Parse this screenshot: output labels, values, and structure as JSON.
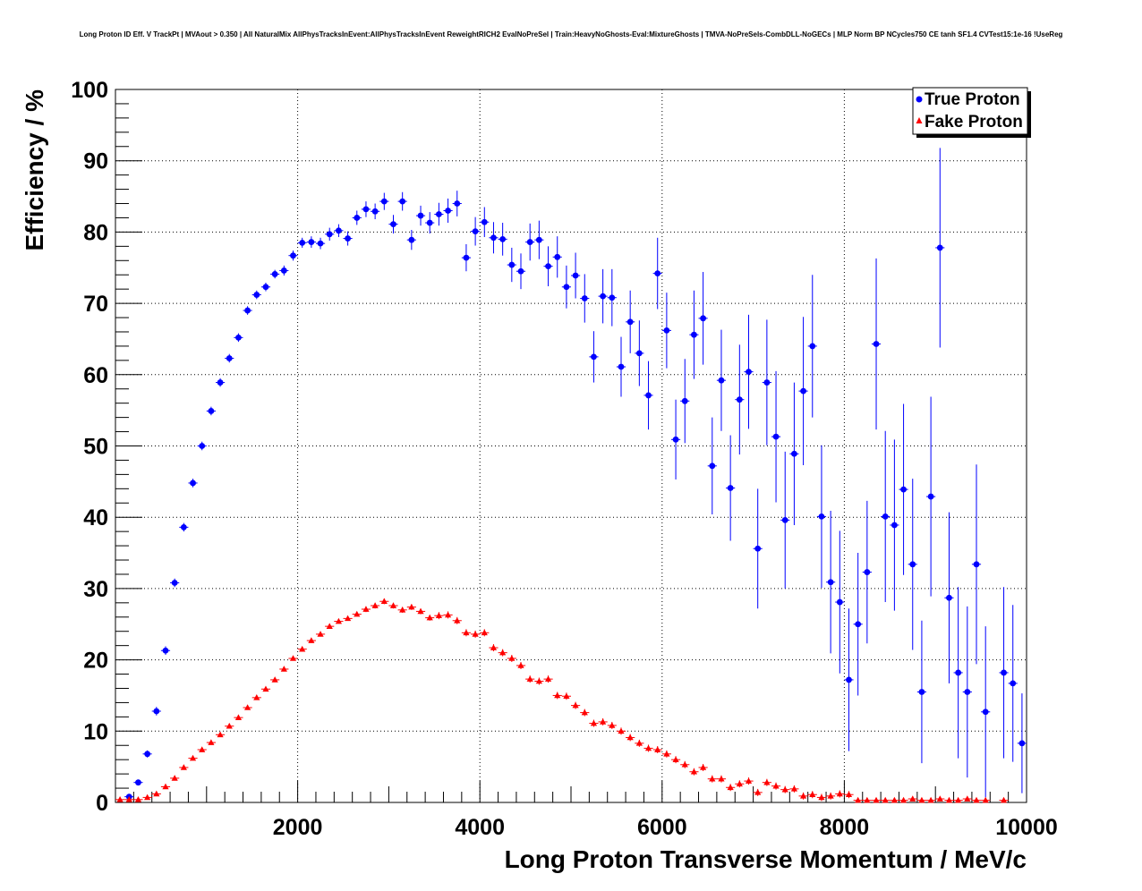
{
  "chart_data": {
    "type": "scatter",
    "title": "Long Proton ID Eff. V TrackPt | MVAout > 0.350 | All NaturalMix AllPhysTracksInEvent:AllPhysTracksInEvent ReweightRICH2 EvalNoPreSel | Train:HeavyNoGhosts-Eval:MixtureGhosts | TMVA-NoPreSels-CombDLL-NoGECs | MLP Norm BP NCycles750 CE tanh SF1.4 CVTest15:1e-16 !UseReg",
    "xlabel": "Long Proton Transverse Momentum / MeV/c",
    "ylabel": "Efficiency / %",
    "xlim": [
      0,
      10000
    ],
    "ylim": [
      0,
      100
    ],
    "grid": true,
    "legend_position": "top-right",
    "x_ticks": [
      "2000",
      "4000",
      "6000",
      "8000",
      "10000"
    ],
    "y_ticks": [
      "0",
      "10",
      "20",
      "30",
      "40",
      "50",
      "60",
      "70",
      "80",
      "90",
      "100"
    ],
    "x": [
      50,
      150,
      250,
      350,
      450,
      550,
      650,
      750,
      850,
      950,
      1050,
      1150,
      1250,
      1350,
      1450,
      1550,
      1650,
      1750,
      1850,
      1950,
      2050,
      2150,
      2250,
      2350,
      2450,
      2550,
      2650,
      2750,
      2850,
      2950,
      3050,
      3150,
      3250,
      3350,
      3450,
      3550,
      3650,
      3750,
      3850,
      3950,
      4050,
      4150,
      4250,
      4350,
      4450,
      4550,
      4650,
      4750,
      4850,
      4950,
      5050,
      5150,
      5250,
      5350,
      5450,
      5550,
      5650,
      5750,
      5850,
      5950,
      6050,
      6150,
      6250,
      6350,
      6450,
      6550,
      6650,
      6750,
      6850,
      6950,
      7050,
      7150,
      7250,
      7350,
      7450,
      7550,
      7650,
      7750,
      7850,
      7950,
      8050,
      8150,
      8250,
      8350,
      8450,
      8550,
      8650,
      8750,
      8850,
      8950,
      9050,
      9150,
      9250,
      9350,
      9450,
      9550,
      9650,
      9750,
      9850,
      9950
    ],
    "series": [
      {
        "name": "True Proton",
        "color": "#0000ff",
        "marker": "circle",
        "values": [
          null,
          0.8,
          2.8,
          6.8,
          12.8,
          21.3,
          30.8,
          38.6,
          44.8,
          50.0,
          54.9,
          58.9,
          62.3,
          65.2,
          69.0,
          71.2,
          72.3,
          74.1,
          74.6,
          76.7,
          78.5,
          78.6,
          78.4,
          79.7,
          80.2,
          79.1,
          82.0,
          83.2,
          82.9,
          84.3,
          81.1,
          84.3,
          78.9,
          82.3,
          81.3,
          82.5,
          83.0,
          84.0,
          76.4,
          80.1,
          81.4,
          79.2,
          79.0,
          75.4,
          74.5,
          78.6,
          78.9,
          75.2,
          76.5,
          72.3,
          73.9,
          70.7,
          62.5,
          71.0,
          70.8,
          61.1,
          67.4,
          63.0,
          57.1,
          74.2,
          66.2,
          50.9,
          56.3,
          65.6,
          67.9,
          47.2,
          59.2,
          44.1,
          56.5,
          60.4,
          35.6,
          58.9,
          51.3,
          39.6,
          48.9,
          57.7,
          64.0,
          40.1,
          30.9,
          28.1,
          17.2,
          25.0,
          32.3,
          64.3,
          40.1,
          38.9,
          43.9,
          33.4,
          15.5,
          42.9,
          77.8,
          28.7,
          18.2,
          15.5,
          33.4,
          12.7,
          null,
          18.2,
          16.7,
          8.3
        ],
        "errors": [
          0,
          0.3,
          0.4,
          0.5,
          0.6,
          0.6,
          0.6,
          0.6,
          0.6,
          0.6,
          0.6,
          0.6,
          0.6,
          0.6,
          0.6,
          0.6,
          0.6,
          0.6,
          0.7,
          0.7,
          0.7,
          0.8,
          0.8,
          0.9,
          0.9,
          1.0,
          1.0,
          1.1,
          1.1,
          1.2,
          1.3,
          1.3,
          1.4,
          1.4,
          1.5,
          1.6,
          1.7,
          1.8,
          1.9,
          2.0,
          2.1,
          2.2,
          2.3,
          2.4,
          2.5,
          2.6,
          2.7,
          2.8,
          2.9,
          3.0,
          3.2,
          3.4,
          3.6,
          3.8,
          4.0,
          4.2,
          4.4,
          4.6,
          4.8,
          5.0,
          5.3,
          5.6,
          5.9,
          6.2,
          6.5,
          6.8,
          7.1,
          7.4,
          7.7,
          8.0,
          8.4,
          8.8,
          9.2,
          9.6,
          10.0,
          10.4,
          10.0,
          10.0,
          10.0,
          10.0,
          10.0,
          10.0,
          10.0,
          12.0,
          12.0,
          12.0,
          12.0,
          12.0,
          10.0,
          14.0,
          14.0,
          12.0,
          12.0,
          12.0,
          14.0,
          12.0,
          0,
          12.0,
          11.0,
          7.0
        ]
      },
      {
        "name": "Fake Proton",
        "color": "#ff0000",
        "marker": "triangle",
        "values": [
          0.4,
          0.4,
          0.4,
          0.7,
          1.2,
          2.2,
          3.4,
          4.9,
          6.2,
          7.4,
          8.4,
          9.5,
          10.7,
          11.9,
          13.3,
          14.7,
          15.9,
          17.2,
          18.7,
          20.2,
          21.5,
          22.7,
          23.6,
          24.7,
          25.4,
          25.8,
          26.4,
          27.1,
          27.6,
          28.2,
          27.6,
          27.0,
          27.4,
          26.8,
          25.9,
          26.2,
          26.3,
          25.5,
          23.8,
          23.6,
          23.8,
          21.7,
          21.0,
          20.2,
          19.2,
          17.3,
          17.0,
          17.3,
          15.0,
          14.9,
          13.6,
          12.6,
          11.1,
          11.3,
          10.8,
          10.0,
          9.1,
          8.3,
          7.6,
          7.4,
          6.8,
          6.0,
          5.3,
          4.3,
          4.9,
          3.3,
          3.3,
          2.1,
          2.6,
          3.0,
          1.4,
          2.8,
          2.3,
          1.8,
          1.9,
          0.9,
          1.1,
          0.7,
          0.9,
          1.2,
          1.1,
          0.3,
          0.3,
          0.3,
          0.3,
          0.3,
          0.3,
          0.5,
          0.3,
          0.3,
          0.5,
          0.3,
          0.3,
          0.5,
          0.3,
          0.3,
          null,
          0.3,
          null,
          null
        ],
        "errors": [
          0.1,
          0.1,
          0.1,
          0.1,
          0.1,
          0.2,
          0.2,
          0.2,
          0.2,
          0.2,
          0.2,
          0.2,
          0.2,
          0.2,
          0.2,
          0.2,
          0.2,
          0.2,
          0.2,
          0.3,
          0.3,
          0.3,
          0.3,
          0.3,
          0.3,
          0.3,
          0.3,
          0.4,
          0.4,
          0.4,
          0.4,
          0.4,
          0.4,
          0.4,
          0.4,
          0.5,
          0.5,
          0.5,
          0.5,
          0.5,
          0.5,
          0.5,
          0.5,
          0.5,
          0.5,
          0.5,
          0.5,
          0.5,
          0.5,
          0.5,
          0.5,
          0.5,
          0.5,
          0.5,
          0.5,
          0.5,
          0.5,
          0.5,
          0.5,
          0.5,
          0.5,
          0.5,
          0.5,
          0.5,
          0.5,
          0.5,
          0.5,
          0.5,
          0.5,
          0.5,
          0.5,
          0.5,
          0.5,
          0.5,
          0.5,
          0.5,
          0.5,
          0.5,
          0.5,
          0.5,
          0.5,
          0.3,
          0.3,
          0.3,
          0.3,
          0.3,
          0.3,
          0.3,
          0.3,
          0.3,
          0.3,
          0.3,
          0.3,
          0.3,
          0.3,
          0.3,
          0,
          0.3,
          0,
          0
        ]
      }
    ]
  }
}
